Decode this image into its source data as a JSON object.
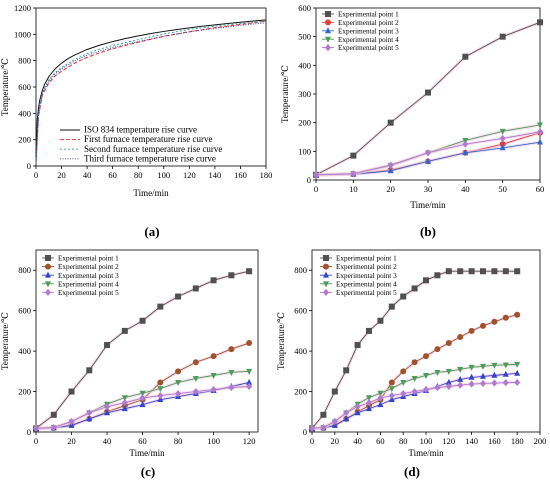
{
  "chart_data": [
    {
      "id": "a",
      "type": "line",
      "label": "(a)",
      "xlabel": "Time/min",
      "ylabel": "Temperature/℃",
      "xlim": [
        0,
        180
      ],
      "ylim": [
        0,
        1200
      ],
      "xticks": [
        0,
        20,
        40,
        60,
        80,
        100,
        120,
        140,
        160,
        180
      ],
      "yticks": [
        0,
        200,
        400,
        600,
        800,
        1000,
        1200
      ],
      "grid": false,
      "legend_position": "bottom-center",
      "series": [
        {
          "name": "ISO 834 temperature rise curve",
          "color": "#111111",
          "dash": "",
          "marker": "none",
          "x": [
            0,
            1,
            2,
            3,
            5,
            7,
            10,
            15,
            20,
            25,
            30,
            40,
            50,
            60,
            70,
            80,
            90,
            100,
            110,
            120,
            130,
            140,
            150,
            160,
            170,
            180
          ],
          "y": [
            20,
            349,
            445,
            502,
            576,
            626,
            678,
            739,
            781,
            815,
            842,
            885,
            918,
            945,
            968,
            988,
            1006,
            1022,
            1036,
            1049,
            1061,
            1072,
            1082,
            1092,
            1101,
            1110
          ]
        },
        {
          "name": "First furnace temperature rise curve",
          "color": "#e03030",
          "dash": "4,2",
          "marker": "none",
          "x": [
            0,
            2,
            5,
            10,
            15,
            20,
            30,
            40,
            50,
            60,
            80,
            100,
            120,
            140,
            160,
            180
          ],
          "y": [
            20,
            380,
            540,
            630,
            685,
            720,
            780,
            825,
            860,
            890,
            940,
            985,
            1020,
            1050,
            1075,
            1100
          ]
        },
        {
          "name": "Second furnace temperature rise curve",
          "color": "#3aa0a0",
          "dash": "2,2",
          "marker": "none",
          "x": [
            0,
            2,
            5,
            10,
            15,
            20,
            30,
            40,
            50,
            60,
            80,
            100,
            120,
            140,
            160,
            180
          ],
          "y": [
            20,
            400,
            560,
            655,
            710,
            748,
            808,
            853,
            888,
            915,
            960,
            1003,
            1037,
            1062,
            1082,
            1100
          ]
        },
        {
          "name": "Third furnace temperature rise curve",
          "color": "#3d3db8",
          "dash": "1,1.5",
          "marker": "none",
          "x": [
            0,
            2,
            5,
            10,
            15,
            20,
            30,
            40,
            50,
            60,
            80,
            100,
            120,
            140,
            160,
            180
          ],
          "y": [
            20,
            395,
            552,
            645,
            700,
            738,
            796,
            840,
            873,
            900,
            945,
            985,
            1018,
            1045,
            1068,
            1088
          ]
        }
      ]
    },
    {
      "id": "b",
      "type": "line",
      "label": "(b)",
      "xlabel": "Time/min",
      "ylabel": "Temperature/℃",
      "xlim": [
        0,
        60
      ],
      "ylim": [
        0,
        600
      ],
      "xticks": [
        0,
        10,
        20,
        30,
        40,
        50,
        60
      ],
      "yticks": [
        0,
        100,
        200,
        300,
        400,
        500,
        600
      ],
      "grid": false,
      "legend_position": "top-left",
      "x": [
        0,
        10,
        20,
        30,
        40,
        50,
        60
      ],
      "series": [
        {
          "name": "Experimental point 1",
          "color": "#505050",
          "marker": "square",
          "y": [
            18,
            85,
            200,
            305,
            430,
            500,
            550
          ]
        },
        {
          "name": "Experimental point 2",
          "color": "#e04040",
          "marker": "circle",
          "y": [
            18,
            20,
            35,
            65,
            95,
            125,
            165
          ]
        },
        {
          "name": "Experimental point 3",
          "color": "#3366cc",
          "marker": "triangle-up",
          "y": [
            18,
            20,
            32,
            65,
            95,
            112,
            132
          ]
        },
        {
          "name": "Experimental point 4",
          "color": "#4c9c5c",
          "marker": "triangle-down",
          "y": [
            18,
            22,
            50,
            95,
            138,
            170,
            192
          ]
        },
        {
          "name": "Experimental point 5",
          "color": "#b07ad0",
          "marker": "diamond",
          "y": [
            18,
            22,
            52,
            95,
            125,
            145,
            168
          ]
        }
      ]
    },
    {
      "id": "c",
      "type": "line",
      "label": "(c)",
      "xlabel": "Time/min",
      "ylabel": "Temperature/℃",
      "xlim": [
        0,
        125
      ],
      "ylim": [
        0,
        900
      ],
      "xticks": [
        0,
        20,
        40,
        60,
        80,
        100,
        120
      ],
      "yticks": [
        0,
        200,
        400,
        600,
        800
      ],
      "grid": false,
      "legend_position": "top-left",
      "x": [
        0,
        10,
        20,
        30,
        40,
        50,
        60,
        70,
        80,
        90,
        100,
        110,
        120
      ],
      "series": [
        {
          "name": "Experimental point 1",
          "color": "#505050",
          "marker": "square",
          "y": [
            18,
            85,
            200,
            305,
            430,
            500,
            550,
            620,
            670,
            710,
            750,
            775,
            795
          ]
        },
        {
          "name": "Experimental point 2",
          "color": "#a0522d",
          "marker": "circle",
          "y": [
            18,
            20,
            35,
            65,
            100,
            130,
            160,
            245,
            300,
            345,
            375,
            410,
            440
          ]
        },
        {
          "name": "Experimental point 3",
          "color": "#3344cc",
          "marker": "triangle-up",
          "y": [
            18,
            20,
            32,
            65,
            95,
            115,
            135,
            160,
            175,
            190,
            205,
            225,
            245
          ]
        },
        {
          "name": "Experimental point 4",
          "color": "#4c9c5c",
          "marker": "triangle-down",
          "y": [
            18,
            22,
            50,
            95,
            138,
            170,
            192,
            215,
            245,
            265,
            280,
            295,
            300
          ]
        },
        {
          "name": "Experimental point 5",
          "color": "#b07ad0",
          "marker": "diamond",
          "y": [
            18,
            22,
            52,
            95,
            125,
            145,
            168,
            180,
            190,
            200,
            210,
            220,
            225
          ]
        }
      ]
    },
    {
      "id": "d",
      "type": "line",
      "label": "(d)",
      "xlabel": "Time/min",
      "ylabel": "Temperature/℃",
      "xlim": [
        0,
        200
      ],
      "ylim": [
        0,
        900
      ],
      "xticks": [
        0,
        20,
        40,
        60,
        80,
        100,
        120,
        140,
        160,
        180,
        200
      ],
      "yticks": [
        0,
        200,
        400,
        600,
        800
      ],
      "grid": false,
      "legend_position": "top-left",
      "x": [
        0,
        10,
        20,
        30,
        40,
        50,
        60,
        70,
        80,
        90,
        100,
        110,
        120,
        130,
        140,
        150,
        160,
        170,
        180
      ],
      "series": [
        {
          "name": "Experimental point 1",
          "color": "#505050",
          "marker": "square",
          "y": [
            18,
            85,
            200,
            305,
            430,
            500,
            550,
            620,
            670,
            710,
            750,
            775,
            795,
            795,
            795,
            795,
            795,
            795,
            795
          ]
        },
        {
          "name": "Experimental point 2",
          "color": "#a0522d",
          "marker": "circle",
          "y": [
            18,
            20,
            35,
            65,
            100,
            130,
            160,
            245,
            300,
            345,
            375,
            410,
            440,
            470,
            500,
            525,
            545,
            565,
            580
          ]
        },
        {
          "name": "Experimental point 3",
          "color": "#3344cc",
          "marker": "triangle-up",
          "y": [
            18,
            20,
            32,
            65,
            95,
            115,
            135,
            160,
            175,
            190,
            205,
            225,
            245,
            260,
            270,
            275,
            280,
            285,
            290
          ]
        },
        {
          "name": "Experimental point 4",
          "color": "#4c9c5c",
          "marker": "triangle-down",
          "y": [
            18,
            22,
            50,
            95,
            138,
            170,
            192,
            215,
            245,
            265,
            280,
            295,
            300,
            310,
            320,
            325,
            330,
            332,
            335
          ]
        },
        {
          "name": "Experimental point 5",
          "color": "#b07ad0",
          "marker": "diamond",
          "y": [
            18,
            22,
            52,
            95,
            125,
            145,
            168,
            180,
            190,
            200,
            210,
            220,
            225,
            232,
            237,
            240,
            242,
            244,
            245
          ]
        }
      ]
    }
  ]
}
